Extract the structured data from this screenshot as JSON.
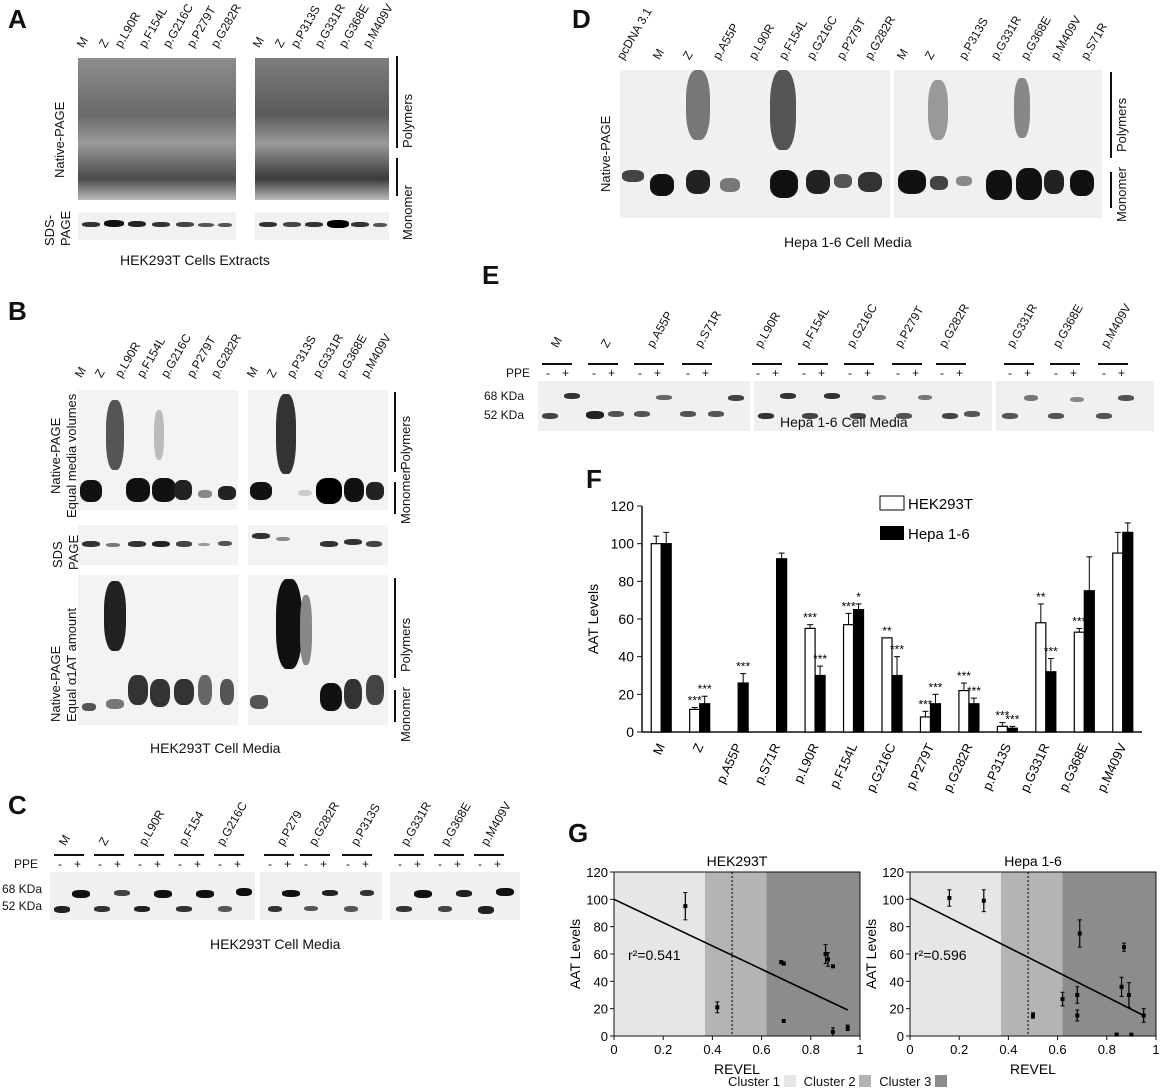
{
  "panelA": {
    "letter": "A",
    "lanes_left": [
      "M",
      "Z",
      "p.L90R",
      "p.F154L",
      "p.G216C",
      "p.P279T",
      "p.G282R"
    ],
    "lanes_right": [
      "M",
      "Z",
      "p.P313S",
      "p.G331R",
      "p.G368E",
      "p.M409V"
    ],
    "native_label": "Native-PAGE",
    "sds_label_1": "SDS-",
    "sds_label_2": "PAGE",
    "polymers": "Polymers",
    "monomer": "Monomer",
    "caption": "HEK293T Cells Extracts"
  },
  "panelB": {
    "letter": "B",
    "lanes_left": [
      "M",
      "Z",
      "p.L90R",
      "p.F154L",
      "p.G216C",
      "p.P279T",
      "p.G282R"
    ],
    "lanes_right": [
      "M",
      "Z",
      "p.P313S",
      "p.G331R",
      "p.G368E",
      "p.M409V"
    ],
    "native1_a": "Native-PAGE",
    "native1_b": "Equal media volumes",
    "sds_a": "SDS",
    "sds_b": "PAGE",
    "native2_a": "Native-PAGE",
    "native2_b": "Equal α1AT amount",
    "polymers": "Polymers",
    "monomer": "Monomer",
    "polymers2": "Polymers",
    "monomer2": "Monomer",
    "caption": "HEK293T Cell Media"
  },
  "panelC": {
    "letter": "C",
    "lanes": [
      "M",
      "Z",
      "p.L90R",
      "p.F154",
      "p.G216C",
      "p.P279",
      "p.G282R",
      "p.P313S",
      "p.G331R",
      "p.G368E",
      "p.M409V"
    ],
    "ppe": "PPE",
    "minus": "-",
    "plus": "+",
    "kda68": "68 KDa",
    "kda52": "52 KDa",
    "caption": "HEK293T Cell Media"
  },
  "panelD": {
    "letter": "D",
    "lanes": [
      "pcDNA 3.1",
      "M",
      "Z",
      "p.A55P",
      "p.L90R",
      "p.F154L",
      "p.G216C",
      "p.P279T",
      "p.G282R",
      "M",
      "Z",
      "p.P313S",
      "p.G331R",
      "p.G368E",
      "p.M409V",
      "p.S71R"
    ],
    "native_label": "Native-PAGE",
    "polymers": "Polymers",
    "monomer": "Monomer",
    "caption": "Hepa 1-6 Cell Media"
  },
  "panelE": {
    "letter": "E",
    "lanes": [
      "M",
      "Z",
      "p.A55P",
      "p.S71R",
      "p.L90R",
      "p.F154L",
      "p.G216C",
      "p.P279T",
      "p.G282R",
      "p.G331R",
      "p.G368E",
      "p.M409V"
    ],
    "ppe": "PPE",
    "kda68": "68 KDa",
    "kda52": "52 KDa",
    "caption": "Hepa 1-6 Cell Media"
  },
  "panelF": {
    "letter": "F",
    "ylabel": "AAT Levels",
    "legend": [
      "HEK293T",
      "Hepa 1-6"
    ]
  },
  "panelG": {
    "letter": "G",
    "xlabel": "REVEL",
    "ylabel": "AAT Levels",
    "left_title": "HEK293T",
    "right_title": "Hepa 1-6",
    "r2_left": "r²=0.541",
    "r2_right": "r²=0.596",
    "clusters": [
      "Cluster 1",
      "Cluster 2",
      "Cluster 3"
    ],
    "cluster_colors": [
      "#e6e6e6",
      "#b4b4b4",
      "#8c8c8c"
    ]
  },
  "chart_data": [
    {
      "type": "bar",
      "categories": [
        "M",
        "Z",
        "p.A55P",
        "p.S71R",
        "p.L90R",
        "p.F154L",
        "p.G216C",
        "p.P279T",
        "p.G282R",
        "p.P313S",
        "p.G331R",
        "p.G368E",
        "p.M409V"
      ],
      "series": [
        {
          "name": "HEK293T",
          "values": [
            100,
            12,
            null,
            null,
            55,
            57,
            50,
            8,
            22,
            3,
            58,
            53,
            95
          ],
          "errors": [
            4,
            1,
            null,
            null,
            2,
            6,
            0,
            3,
            4,
            2,
            10,
            2,
            11
          ],
          "sig": [
            "",
            "***",
            "",
            "",
            "***",
            "***",
            "**",
            "***",
            "***",
            "***",
            "**",
            "***",
            ""
          ]
        },
        {
          "name": "Hepa 1-6",
          "values": [
            100,
            15,
            26,
            92,
            30,
            65,
            30,
            15,
            15,
            2,
            32,
            75,
            106
          ],
          "errors": [
            6,
            4,
            5,
            3,
            5,
            3,
            10,
            5,
            3,
            1,
            7,
            18,
            5
          ],
          "sig": [
            "",
            "***",
            "***",
            "",
            "***",
            "*",
            "***",
            "***",
            "***",
            "***",
            "***",
            "",
            ""
          ]
        }
      ],
      "title": "",
      "xlabel": "",
      "ylabel": "AAT Levels",
      "ylim": [
        0,
        120
      ],
      "yticks": [
        0,
        20,
        40,
        60,
        80,
        100,
        120
      ],
      "legend": "top-right"
    },
    {
      "type": "scatter",
      "title": "HEK293T",
      "xlabel": "REVEL",
      "ylabel": "AAT Levels",
      "xlim": [
        0,
        1
      ],
      "ylim": [
        0,
        120
      ],
      "xticks": [
        0,
        0.2,
        0.4,
        0.6,
        0.8,
        1
      ],
      "yticks": [
        0,
        20,
        40,
        60,
        80,
        100,
        120
      ],
      "points": [
        {
          "x": 0.29,
          "y": 95,
          "e": 10
        },
        {
          "x": 0.42,
          "y": 21,
          "e": 4
        },
        {
          "x": 0.68,
          "y": 54,
          "e": 1
        },
        {
          "x": 0.69,
          "y": 53,
          "e": 1
        },
        {
          "x": 0.69,
          "y": 11,
          "e": 0
        },
        {
          "x": 0.86,
          "y": 60,
          "e": 7
        },
        {
          "x": 0.87,
          "y": 56,
          "e": 5
        },
        {
          "x": 0.89,
          "y": 51,
          "e": 0
        },
        {
          "x": 0.89,
          "y": 3,
          "e": 3
        },
        {
          "x": 0.95,
          "y": 6,
          "e": 2
        }
      ],
      "regression": {
        "x0": 0,
        "y0": 100,
        "x1": 0.95,
        "y1": 19
      },
      "threshold_x": 0.48,
      "cluster_bounds": [
        0,
        0.37,
        0.62,
        1
      ]
    },
    {
      "type": "scatter",
      "title": "Hepa 1-6",
      "xlabel": "REVEL",
      "ylabel": "AAT Levels",
      "xlim": [
        0,
        1
      ],
      "ylim": [
        0,
        120
      ],
      "xticks": [
        0,
        0.2,
        0.4,
        0.6,
        0.8,
        1
      ],
      "yticks": [
        0,
        20,
        40,
        60,
        80,
        100,
        120
      ],
      "points": [
        {
          "x": 0.16,
          "y": 101,
          "e": 6
        },
        {
          "x": 0.3,
          "y": 99,
          "e": 8
        },
        {
          "x": 0.5,
          "y": 15,
          "e": 2
        },
        {
          "x": 0.62,
          "y": 27,
          "e": 5
        },
        {
          "x": 0.68,
          "y": 30,
          "e": 6
        },
        {
          "x": 0.68,
          "y": 15,
          "e": 4
        },
        {
          "x": 0.69,
          "y": 75,
          "e": 10
        },
        {
          "x": 0.84,
          "y": 1,
          "e": 1
        },
        {
          "x": 0.86,
          "y": 36,
          "e": 7
        },
        {
          "x": 0.87,
          "y": 65,
          "e": 3
        },
        {
          "x": 0.89,
          "y": 30,
          "e": 9
        },
        {
          "x": 0.9,
          "y": 1,
          "e": 0
        },
        {
          "x": 0.95,
          "y": 15,
          "e": 5
        }
      ],
      "regression": {
        "x0": 0,
        "y0": 101,
        "x1": 0.95,
        "y1": 15
      },
      "threshold_x": 0.48,
      "cluster_bounds": [
        0,
        0.37,
        0.62,
        1
      ]
    }
  ]
}
